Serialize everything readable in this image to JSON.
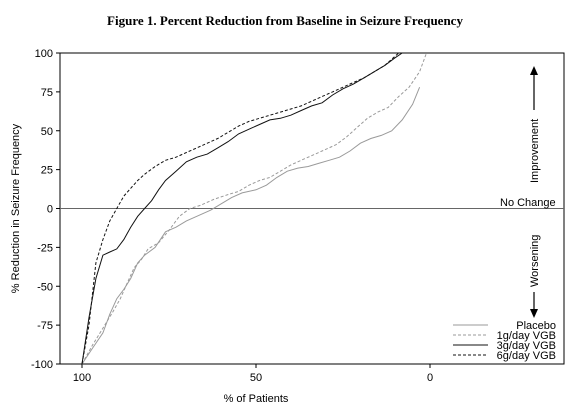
{
  "chart_data": {
    "type": "line",
    "title": "Figure 1. Percent Reduction from Baseline in Seizure Frequency",
    "xlabel": "% of Patients",
    "ylabel": "% Reduction in Seizure Frequency",
    "xlim": [
      100,
      0
    ],
    "ylim": [
      -100,
      100
    ],
    "x_ticks": [
      {
        "value": 100,
        "label": "100"
      },
      {
        "value": 50,
        "label": "50"
      },
      {
        "value": 0,
        "label": "0"
      }
    ],
    "y_ticks": [
      {
        "value": 100,
        "label": "100"
      },
      {
        "value": 75,
        "label": "75"
      },
      {
        "value": 50,
        "label": "50"
      },
      {
        "value": 25,
        "label": "25"
      },
      {
        "value": 0,
        "label": "0"
      },
      {
        "value": -25,
        "label": "-25"
      },
      {
        "value": -50,
        "label": "-50"
      },
      {
        "value": -75,
        "label": "-75"
      },
      {
        "value": -100,
        "label": "-100"
      }
    ],
    "baseline_y": 0,
    "legend_position": "bottom-right",
    "annotations": {
      "improvement": "Improvement",
      "no_change": "No Change",
      "worsening": "Worsening"
    },
    "series": [
      {
        "name": "Placebo",
        "color": "#9a9a9a",
        "dash": "",
        "points": [
          [
            100,
            -100
          ],
          [
            97,
            -90
          ],
          [
            94,
            -80
          ],
          [
            92,
            -68
          ],
          [
            90,
            -58
          ],
          [
            88,
            -52
          ],
          [
            86,
            -45
          ],
          [
            84,
            -35
          ],
          [
            82,
            -30
          ],
          [
            79,
            -25
          ],
          [
            76,
            -15
          ],
          [
            73,
            -12
          ],
          [
            70,
            -8
          ],
          [
            67,
            -5
          ],
          [
            63,
            -1
          ],
          [
            60,
            3
          ],
          [
            57,
            7
          ],
          [
            54,
            10
          ],
          [
            50,
            12
          ],
          [
            47,
            15
          ],
          [
            44,
            20
          ],
          [
            41,
            24
          ],
          [
            38,
            26
          ],
          [
            35,
            27
          ],
          [
            32,
            29
          ],
          [
            29,
            31
          ],
          [
            26,
            33
          ],
          [
            23,
            37
          ],
          [
            20,
            42
          ],
          [
            17,
            45
          ],
          [
            14,
            47
          ],
          [
            11,
            50
          ],
          [
            8,
            57
          ],
          [
            5,
            67
          ],
          [
            3,
            78
          ]
        ]
      },
      {
        "name": "1g/day VGB",
        "color": "#9a9a9a",
        "dash": "3,2",
        "points": [
          [
            100,
            -100
          ],
          [
            97,
            -88
          ],
          [
            94,
            -77
          ],
          [
            91,
            -66
          ],
          [
            89,
            -58
          ],
          [
            87,
            -48
          ],
          [
            85,
            -38
          ],
          [
            83,
            -33
          ],
          [
            81,
            -26
          ],
          [
            78,
            -22
          ],
          [
            75,
            -14
          ],
          [
            72,
            -5
          ],
          [
            69,
            0
          ],
          [
            66,
            2
          ],
          [
            62,
            6
          ],
          [
            58,
            9
          ],
          [
            55,
            11
          ],
          [
            52,
            15
          ],
          [
            49,
            18
          ],
          [
            46,
            20
          ],
          [
            43,
            24
          ],
          [
            40,
            28
          ],
          [
            36,
            32
          ],
          [
            33,
            35
          ],
          [
            30,
            38
          ],
          [
            27,
            41
          ],
          [
            24,
            46
          ],
          [
            21,
            52
          ],
          [
            18,
            58
          ],
          [
            15,
            62
          ],
          [
            12,
            65
          ],
          [
            9,
            72
          ],
          [
            6,
            78
          ],
          [
            3,
            88
          ],
          [
            1,
            100
          ]
        ]
      },
      {
        "name": "3g/day VGB",
        "color": "#111111",
        "dash": "",
        "points": [
          [
            100,
            -100
          ],
          [
            98,
            -70
          ],
          [
            96,
            -45
          ],
          [
            94,
            -30
          ],
          [
            92,
            -28
          ],
          [
            90,
            -26
          ],
          [
            88,
            -20
          ],
          [
            86,
            -12
          ],
          [
            84,
            -5
          ],
          [
            82,
            0
          ],
          [
            80,
            5
          ],
          [
            78,
            12
          ],
          [
            76,
            18
          ],
          [
            73,
            24
          ],
          [
            70,
            30
          ],
          [
            67,
            33
          ],
          [
            64,
            35
          ],
          [
            61,
            39
          ],
          [
            58,
            43
          ],
          [
            55,
            48
          ],
          [
            52,
            51
          ],
          [
            49,
            54
          ],
          [
            46,
            57
          ],
          [
            43,
            58
          ],
          [
            40,
            60
          ],
          [
            37,
            63
          ],
          [
            34,
            66
          ],
          [
            31,
            68
          ],
          [
            28,
            73
          ],
          [
            25,
            77
          ],
          [
            22,
            80
          ],
          [
            19,
            84
          ],
          [
            16,
            88
          ],
          [
            13,
            92
          ],
          [
            10,
            97
          ],
          [
            8,
            100
          ]
        ]
      },
      {
        "name": "6g/day VGB",
        "color": "#111111",
        "dash": "3,2",
        "points": [
          [
            100,
            -100
          ],
          [
            98,
            -75
          ],
          [
            96,
            -35
          ],
          [
            94,
            -20
          ],
          [
            92,
            -8
          ],
          [
            90,
            0
          ],
          [
            88,
            8
          ],
          [
            86,
            13
          ],
          [
            84,
            18
          ],
          [
            82,
            22
          ],
          [
            79,
            27
          ],
          [
            76,
            31
          ],
          [
            73,
            33
          ],
          [
            70,
            36
          ],
          [
            67,
            39
          ],
          [
            64,
            42
          ],
          [
            61,
            45
          ],
          [
            58,
            49
          ],
          [
            55,
            53
          ],
          [
            52,
            56
          ],
          [
            49,
            58
          ],
          [
            46,
            60
          ],
          [
            43,
            62
          ],
          [
            40,
            64
          ],
          [
            37,
            66
          ],
          [
            34,
            69
          ],
          [
            31,
            72
          ],
          [
            28,
            75
          ],
          [
            25,
            78
          ],
          [
            22,
            81
          ],
          [
            19,
            84
          ],
          [
            16,
            88
          ],
          [
            13,
            92
          ],
          [
            11,
            96
          ],
          [
            9,
            100
          ]
        ]
      }
    ]
  }
}
